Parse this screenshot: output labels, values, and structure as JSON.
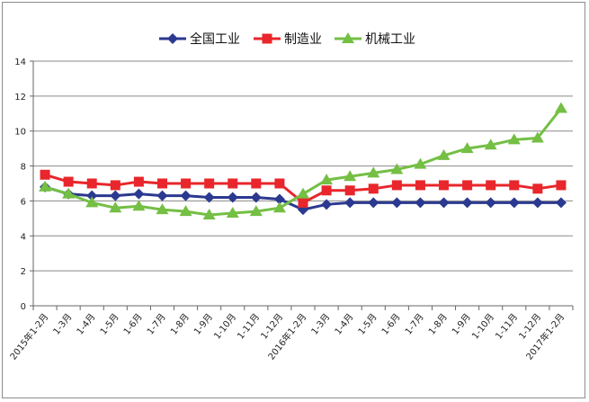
{
  "chart_data": {
    "type": "line",
    "title": "",
    "xlabel": "",
    "ylabel": "",
    "ylim": [
      0,
      14
    ],
    "yticks": [
      0,
      2,
      4,
      6,
      8,
      10,
      12,
      14
    ],
    "grid": "horizontal",
    "legend_position": "top-center",
    "categories": [
      "2015年1-2月",
      "1-3月",
      "1-4月",
      "1-5月",
      "1-6月",
      "1-7月",
      "1-8月",
      "1-9月",
      "1-10月",
      "1-11月",
      "1-12月",
      "2016年1-2月",
      "1-3月",
      "1-4月",
      "1-5月",
      "1-6月",
      "1-7月",
      "1-8月",
      "1-9月",
      "1-10月",
      "1-11月",
      "1-12月",
      "2017年1-2月"
    ],
    "series": [
      {
        "name": "全国工业",
        "color": "#2b3990",
        "marker": "diamond",
        "values": [
          6.8,
          6.4,
          6.3,
          6.3,
          6.4,
          6.3,
          6.3,
          6.2,
          6.2,
          6.2,
          6.1,
          5.5,
          5.8,
          5.9,
          5.9,
          5.9,
          5.9,
          5.9,
          5.9,
          5.9,
          5.9,
          5.9,
          5.9
        ]
      },
      {
        "name": "制造业",
        "color": "#e8262b",
        "marker": "square",
        "values": [
          7.5,
          7.1,
          7.0,
          6.9,
          7.1,
          7.0,
          7.0,
          7.0,
          7.0,
          7.0,
          7.0,
          5.9,
          6.6,
          6.6,
          6.7,
          6.9,
          6.9,
          6.9,
          6.9,
          6.9,
          6.9,
          6.7,
          6.9
        ]
      },
      {
        "name": "机械工业",
        "color": "#74bf44",
        "marker": "triangle",
        "values": [
          6.8,
          6.4,
          5.9,
          5.6,
          5.7,
          5.5,
          5.4,
          5.2,
          5.3,
          5.4,
          5.6,
          6.4,
          7.2,
          7.4,
          7.6,
          7.8,
          8.1,
          8.6,
          9.0,
          9.2,
          9.5,
          9.6,
          11.3
        ]
      }
    ]
  }
}
